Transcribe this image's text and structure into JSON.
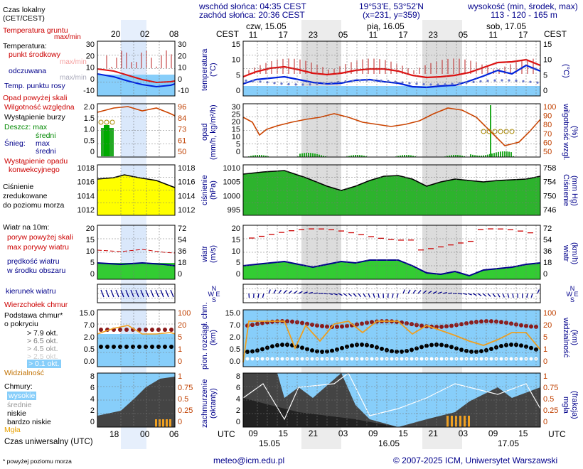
{
  "header": {
    "sunrise": "wschód słońca: 04:35 CEST",
    "sunset": "zachód słońca: 20:36 CEST",
    "coords": "19°53'E, 53°52'N",
    "grid": "(x=231, y=359)",
    "elevation_title": "wysokość (min, środek, max)",
    "elevation_values": "113 - 120 - 165 m"
  },
  "time_axis": {
    "cest_label": "CEST",
    "utc_label": "UTC",
    "days_top": [
      "czw, 15.05",
      "pią, 16.05",
      "sob, 17.05"
    ],
    "hours_top": [
      "11",
      "17",
      "23",
      "05",
      "11",
      "17",
      "23",
      "05",
      "11",
      "17"
    ],
    "hours_bottom": [
      "09",
      "15",
      "21",
      "03",
      "09",
      "15",
      "21",
      "03",
      "09",
      "15"
    ],
    "dates_bottom": [
      "15.05",
      "16.05",
      "17.05"
    ],
    "small_top": [
      "20",
      "02",
      "08"
    ],
    "small_bottom": [
      "18",
      "00",
      "06"
    ]
  },
  "legend": {
    "local_time": "Czas lokalny",
    "local_time_sub": "(CET/CEST)",
    "ground_temp": "Temperatura gruntu",
    "ground_temp_sub": "max/min",
    "temperature": "Temperatura:",
    "mid_point": "punkt środkowy",
    "max_min": "max/min",
    "averaged": "odczuwana",
    "dew_point": "Temp. punktu rosy",
    "precip_above": "Opad powyżej skali",
    "rel_humidity": "Wilgotność względna",
    "storm": "Wystąpienie burzy",
    "rain": "Deszcz: max",
    "rain_avg": "średni",
    "snow": "Śnieg:",
    "snow_max": "max",
    "snow_avg": "średni",
    "conv_precip": "Wystąpienie opadu",
    "conv_precip2": "konwekcyjnego",
    "pressure": "Ciśnienie",
    "pressure2": "zredukowane",
    "pressure3": "do poziomu morza",
    "wind_at": "Wiatr na 10m:",
    "gust_above": "poryw powyżej skali",
    "gust_max": "max porywy wiatru",
    "wind_speed": "prędkość wiatru",
    "wind_speed2": "w środku obszaru",
    "wind_dir": "kierunek wiatru",
    "cloud_top": "Wierzchołek chmur",
    "cloud_base": "Podstawa chmur*",
    "coverage": "o pokryciu",
    "okt79": "> 7.9 okt.",
    "okt65": "> 6.5 okt.",
    "okt45": "> 4.5 okt.",
    "okt25": "> 2.5 okt.",
    "okt01": "> 0.1 okt.",
    "visibility": "Widzialność",
    "clouds": "Chmury:",
    "high": "wysokie",
    "medium": "średnie",
    "low": "niskie",
    "very_low": "bardzo niskie",
    "fog": "Mgła",
    "utc_time": "Czas uniwersalny (UTC)",
    "footnote": "* powyżej poziomu morza"
  },
  "left_scales": {
    "temp_left": [
      "30",
      "20",
      "10",
      "0",
      "-10"
    ],
    "temp_right": [
      "30",
      "20",
      "10",
      "0",
      "-10"
    ],
    "precip_left": [
      "2.0",
      "1.5",
      "1.0",
      "0.5",
      "0"
    ],
    "precip_right": [
      "96",
      "84",
      "73",
      "61",
      "50"
    ],
    "press_left": [
      "1018",
      "1016",
      "1014",
      "1012"
    ],
    "press_right": [
      "1018",
      "1016",
      "1014",
      "1012"
    ],
    "wind_left": [
      "20",
      "15",
      "10",
      "5",
      "0"
    ],
    "wind_right": [
      "72",
      "54",
      "36",
      "18",
      "0"
    ],
    "cloud_left": [
      "15.0",
      "7.0",
      "2.0",
      "0.5",
      "0.0"
    ],
    "cloud_right": [
      "100",
      "20",
      "5",
      "1",
      "0"
    ],
    "cover_left": [
      "8",
      "6",
      "4",
      "2",
      "0"
    ],
    "cover_right": [
      "1",
      "0.75",
      "0.5",
      "0.25",
      "0"
    ]
  },
  "right_axes": {
    "temp_label": "temperatura",
    "temp_unit": "(°C)",
    "temp_left": [
      "15",
      "10",
      "5",
      "0"
    ],
    "temp_right": [
      "15",
      "10",
      "5",
      "0"
    ],
    "precip_label": "opad",
    "precip_unit": "(mm/h, kg/m²/h)",
    "precip_left": [
      "30",
      "25",
      "20",
      "15",
      "10",
      "5",
      "0"
    ],
    "precip_right": [
      "100",
      "90",
      "80",
      "70",
      "60",
      "50"
    ],
    "precip_rlabel": "wilgotność wzgl.",
    "precip_runit": "(%)",
    "press_label": "ciśnienie",
    "press_unit": "(hPa)",
    "press_left": [
      "1010",
      "1005",
      "1000",
      "995"
    ],
    "press_right": [
      "758",
      "754",
      "750",
      "746"
    ],
    "press_runit": "(mm Hg)",
    "wind_label": "wiatr",
    "wind_unit": "(m/s)",
    "wind_left": [
      "20",
      "15",
      "10",
      "5",
      "0"
    ],
    "wind_right": [
      "72",
      "54",
      "36",
      "18",
      "0"
    ],
    "wind_runit": "(km/h)",
    "cloud_label": "pion. rozciągł. chm.",
    "cloud_unit": "(km)",
    "cloud_left": [
      "15.0",
      "7.0",
      "2.0",
      "0.5",
      "0.0"
    ],
    "cloud_right": [
      "100",
      "20",
      "5",
      "1",
      "0"
    ],
    "cloud_rlabel": "widzialność",
    "cloud_runit": "(km)",
    "cover_label": "zachmurzenie",
    "cover_unit": "(oktanty)",
    "cover_left": [
      "8",
      "6",
      "4",
      "2",
      "0"
    ],
    "cover_right": [
      "1",
      "0.75",
      "0.5",
      "0.25",
      "0"
    ],
    "cover_rlabel": "mgła",
    "cover_runit": "(frakcja)"
  },
  "footer": {
    "email": "meteo@icm.edu.pl",
    "copyright": "© 2007-2025 ICM, Uniwersytet Warszawski"
  },
  "colors": {
    "temp_red": "#dd1111",
    "temp_blue": "#0022dd",
    "light_blue_bg": "#87cefa",
    "night_grey": "#dcdcdc",
    "green": "#33cc33",
    "pressure_green": "#2db32d",
    "pressure_yellow": "#ffff00",
    "humidity": "#cc4400"
  }
}
